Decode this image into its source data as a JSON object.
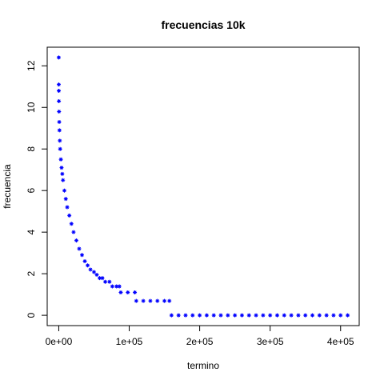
{
  "chart_data": {
    "type": "scatter",
    "title": "frecuencias 10k",
    "x_label": "termino",
    "y_label": "frecuencia",
    "color": "#0000ff",
    "marker": "asterisk",
    "x": [
      1,
      50,
      100,
      200,
      400,
      700,
      1000,
      1500,
      2000,
      3000,
      4000,
      5000,
      6000,
      8000,
      10000,
      12000,
      15000,
      18000,
      21000,
      25000,
      29000,
      33000,
      37000,
      41000,
      45000,
      50000,
      54000,
      58000,
      62000,
      66000,
      72000,
      76000,
      82000,
      86000,
      88000,
      98000,
      108000,
      110000,
      120000,
      130000,
      140000,
      150000,
      157000,
      160000,
      170000,
      180000,
      190000,
      200000,
      210000,
      220000,
      230000,
      240000,
      250000,
      260000,
      270000,
      280000,
      290000,
      300000,
      310000,
      320000,
      330000,
      340000,
      350000,
      360000,
      370000,
      380000,
      390000,
      400000,
      410000
    ],
    "values": [
      12.4,
      11.1,
      10.8,
      10.3,
      9.8,
      9.3,
      8.9,
      8.4,
      8.0,
      7.5,
      7.1,
      6.8,
      6.5,
      6.0,
      5.6,
      5.2,
      4.8,
      4.4,
      4.0,
      3.6,
      3.2,
      2.9,
      2.6,
      2.4,
      2.2,
      2.08,
      1.95,
      1.79,
      1.79,
      1.61,
      1.61,
      1.39,
      1.39,
      1.39,
      1.1,
      1.1,
      1.1,
      0.69,
      0.69,
      0.69,
      0.69,
      0.69,
      0.69,
      0,
      0,
      0,
      0,
      0,
      0,
      0,
      0,
      0,
      0,
      0,
      0,
      0,
      0,
      0,
      0,
      0,
      0,
      0,
      0,
      0,
      0,
      0,
      0,
      0,
      0
    ],
    "xlim": [
      -16400,
      426400
    ],
    "ylim": [
      -0.496,
      12.896
    ],
    "xticks": [
      {
        "value": 0,
        "label": "0e+00"
      },
      {
        "value": 100000,
        "label": "1e+05"
      },
      {
        "value": 200000,
        "label": "2e+05"
      },
      {
        "value": 300000,
        "label": "3e+05"
      },
      {
        "value": 400000,
        "label": "4e+05"
      }
    ],
    "yticks": [
      0,
      2,
      4,
      6,
      8,
      10,
      12
    ]
  }
}
